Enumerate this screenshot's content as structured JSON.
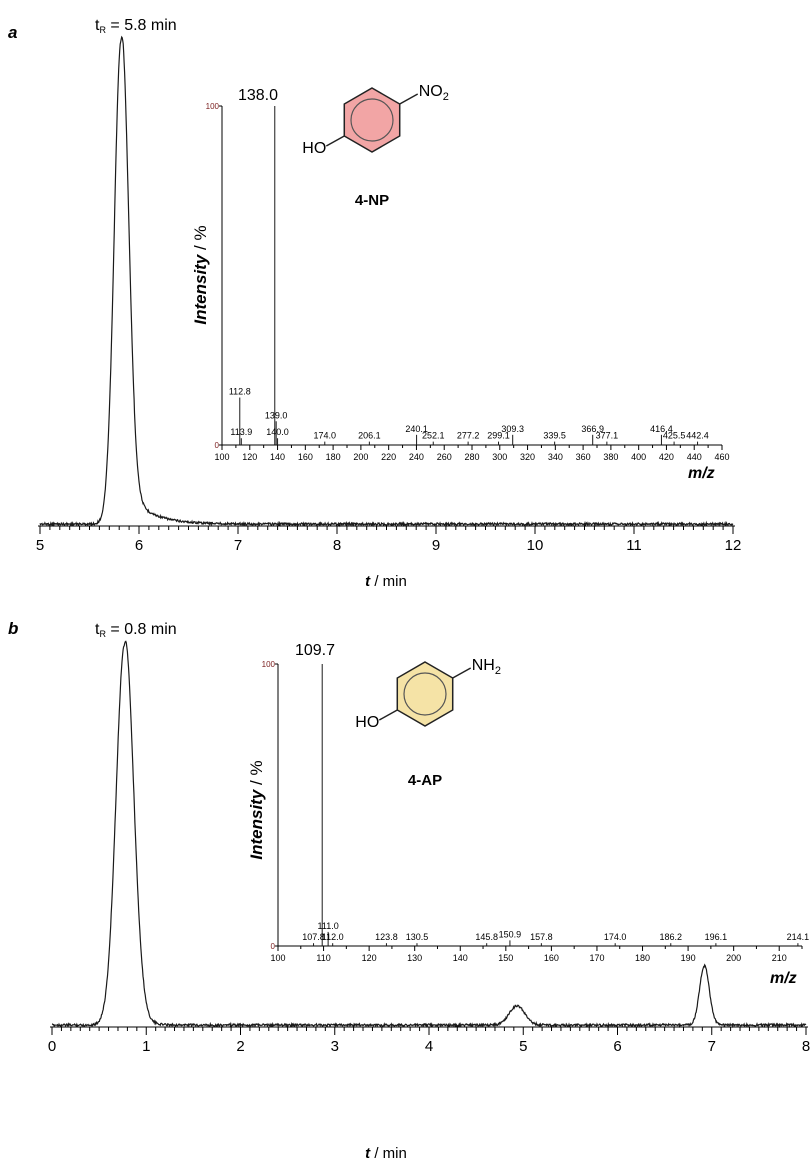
{
  "chart_data": [
    {
      "panel": "a",
      "type": "line",
      "xlabel_var": "t",
      "xlabel_unit": " / min",
      "xlim": [
        5,
        12
      ],
      "x_ticks": [
        5,
        6,
        7,
        8,
        9,
        10,
        11,
        12
      ],
      "annotation": "t",
      "annotation_sub": "R",
      "annotation_rest": " = 5.8 min",
      "peaks": [
        {
          "t": 5.82,
          "height": 1.0,
          "width": 0.07,
          "tail": 0.22
        }
      ],
      "inset": {
        "type": "bar",
        "ylabel": "Intensity / %",
        "xlabel": "m/z",
        "xlim": [
          100,
          460
        ],
        "ylim": [
          0,
          100
        ],
        "y_ticks": [
          0,
          100
        ],
        "x_ticks": [
          100,
          120,
          140,
          160,
          180,
          200,
          220,
          240,
          260,
          280,
          300,
          320,
          340,
          360,
          380,
          400,
          420,
          440,
          460
        ],
        "base_peak": "138.0",
        "compound": "4-NP",
        "substituent": "NO",
        "substituent_sub": "2",
        "hydroxyl": "HO",
        "ring_color": "#f2a5a5",
        "peaks": [
          {
            "mz": 138.0,
            "value": 100,
            "label": ""
          },
          {
            "mz": 112.8,
            "value": 14,
            "label": "112.8"
          },
          {
            "mz": 113.9,
            "value": 2,
            "label": "113.9"
          },
          {
            "mz": 139.0,
            "value": 7,
            "label": "139.0"
          },
          {
            "mz": 140.0,
            "value": 2,
            "label": "140.0"
          },
          {
            "mz": 174.0,
            "value": 1,
            "label": "174.0"
          },
          {
            "mz": 206.1,
            "value": 1,
            "label": "206.1"
          },
          {
            "mz": 240.1,
            "value": 3,
            "label": "240.1"
          },
          {
            "mz": 252.1,
            "value": 1,
            "label": "252.1"
          },
          {
            "mz": 277.2,
            "value": 1,
            "label": "277.2"
          },
          {
            "mz": 299.1,
            "value": 1,
            "label": "299.1"
          },
          {
            "mz": 309.3,
            "value": 3,
            "label": "309.3"
          },
          {
            "mz": 339.5,
            "value": 1,
            "label": "339.5"
          },
          {
            "mz": 366.9,
            "value": 3,
            "label": "366.9"
          },
          {
            "mz": 377.1,
            "value": 1,
            "label": "377.1"
          },
          {
            "mz": 416.4,
            "value": 3,
            "label": "416.4"
          },
          {
            "mz": 425.5,
            "value": 1,
            "label": "425.5"
          },
          {
            "mz": 442.4,
            "value": 1,
            "label": "442.4"
          }
        ]
      }
    },
    {
      "panel": "b",
      "type": "line",
      "xlabel_var": "t",
      "xlabel_unit": " / min",
      "xlim": [
        0,
        8
      ],
      "x_ticks": [
        0,
        1,
        2,
        3,
        4,
        5,
        6,
        7,
        8
      ],
      "annotation": "t",
      "annotation_sub": "R",
      "annotation_rest": " = 0.8 min",
      "peaks": [
        {
          "t": 0.77,
          "height": 1.0,
          "width": 0.09,
          "tail": 0.1
        },
        {
          "t": 4.93,
          "height": 0.05,
          "width": 0.08,
          "tail": 0.06
        },
        {
          "t": 6.92,
          "height": 0.155,
          "width": 0.05,
          "tail": 0.04
        }
      ],
      "inset": {
        "type": "bar",
        "ylabel": "Intensity / %",
        "xlabel": "m/z",
        "xlim": [
          100,
          215
        ],
        "ylim": [
          0,
          100
        ],
        "y_ticks": [
          0,
          100
        ],
        "x_ticks": [
          100,
          110,
          120,
          130,
          140,
          150,
          160,
          170,
          180,
          190,
          200,
          210
        ],
        "base_peak": "109.7",
        "compound": "4-AP",
        "substituent": "NH",
        "substituent_sub": "2",
        "hydroxyl": "HO",
        "ring_color": "#f5e3a6",
        "peaks": [
          {
            "mz": 109.7,
            "value": 100,
            "label": ""
          },
          {
            "mz": 107.8,
            "value": 1,
            "label": "107.8"
          },
          {
            "mz": 111.0,
            "value": 5,
            "label": "111.0"
          },
          {
            "mz": 112.0,
            "value": 1,
            "label": "112.0"
          },
          {
            "mz": 123.8,
            "value": 1,
            "label": "123.8"
          },
          {
            "mz": 130.5,
            "value": 1,
            "label": "130.5"
          },
          {
            "mz": 145.8,
            "value": 1,
            "label": "145.8"
          },
          {
            "mz": 150.9,
            "value": 2,
            "label": "150.9"
          },
          {
            "mz": 157.8,
            "value": 1,
            "label": "157.8"
          },
          {
            "mz": 174.0,
            "value": 1,
            "label": "174.0"
          },
          {
            "mz": 186.2,
            "value": 1,
            "label": "186.2"
          },
          {
            "mz": 196.1,
            "value": 1,
            "label": "196.1"
          },
          {
            "mz": 214.1,
            "value": 1,
            "label": "214.1"
          }
        ]
      }
    }
  ]
}
